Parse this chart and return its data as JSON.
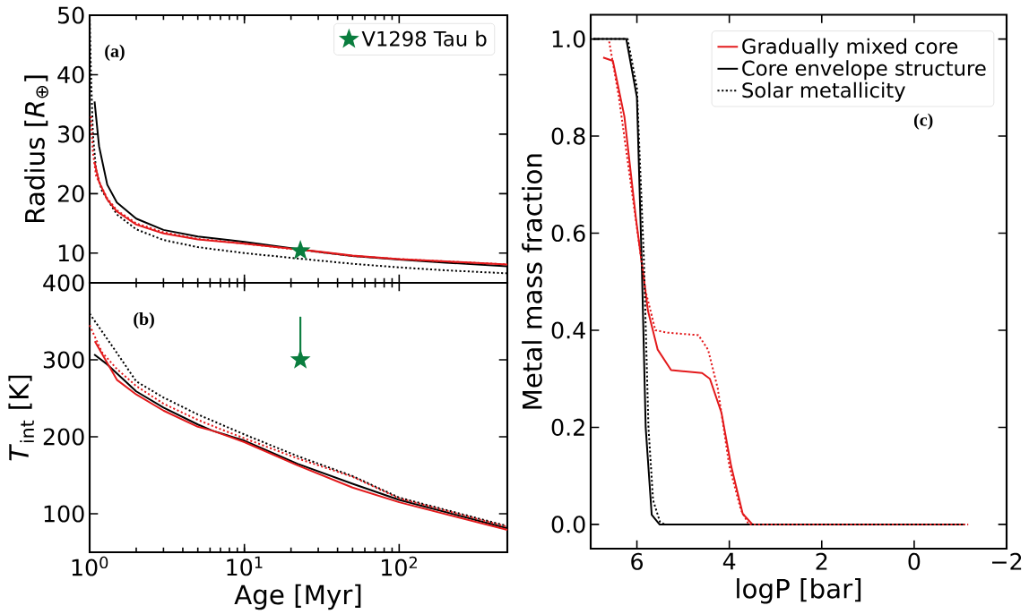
{
  "chart_data": [
    {
      "type": "line",
      "ylabel": "Radius [*R*$_{⊕}$]",
      "log": "x",
      "xlim": [
        1,
        500
      ],
      "ylim": [
        5,
        50
      ],
      "xticks": [
        {
          "value": 1,
          "label": null
        },
        {
          "value": 10,
          "label": null
        },
        {
          "value": 100,
          "label": null
        }
      ],
      "yticks": [
        10,
        20,
        30,
        40,
        50
      ],
      "tick_labels": "y",
      "legend": "top right",
      "annotations": [
        "(a)"
      ],
      "series": [
        {
          "color": "#000000",
          "line_style": "dotted",
          "x": [
            1.0,
            1.02,
            1.05,
            1.1,
            1.2,
            1.5,
            2,
            3,
            5,
            10,
            22,
            50,
            100,
            200,
            500
          ],
          "values": [
            50,
            40,
            30,
            24,
            20.5,
            16.5,
            14,
            12.2,
            11,
            10,
            9.1,
            8.2,
            7.6,
            7.1,
            6.6
          ]
        },
        {
          "color": "#000000",
          "line_style": "solid",
          "x": [
            1.076,
            1.15,
            1.3,
            1.5,
            2,
            3,
            5,
            10,
            32,
            50,
            100,
            200,
            500
          ],
          "values": [
            35.5,
            28,
            21.5,
            18.5,
            15.8,
            13.9,
            12.8,
            11.9,
            10.1,
            9.5,
            8.9,
            8.4,
            7.8
          ]
        },
        {
          "color": "#e31a1c",
          "line_style": "dotted",
          "x": [
            1.02,
            1.05,
            1.1,
            1.3,
            1.5,
            2,
            3,
            5,
            10,
            32,
            50,
            100,
            200,
            500
          ],
          "values": [
            33,
            27,
            23,
            19.2,
            17.2,
            15,
            13.5,
            12.4,
            11.6,
            10.1,
            9.5,
            9.0,
            8.6,
            8.1
          ]
        },
        {
          "color": "#e31a1c",
          "line_style": "solid",
          "x": [
            1.076,
            1.15,
            1.3,
            1.5,
            2,
            3,
            5,
            10,
            32,
            50,
            100,
            200,
            500
          ],
          "values": [
            25.3,
            22,
            19,
            17,
            14.8,
            13.3,
            12.3,
            11.6,
            10.2,
            9.6,
            9.0,
            8.6,
            8.1
          ]
        },
        {
          "type": "scatter",
          "name": "V1298 Tau b",
          "marker": "star",
          "color": "#0a7d3e",
          "x": [
            23
          ],
          "values": [
            10.4
          ]
        }
      ]
    },
    {
      "type": "line",
      "xlabel": "Age [Myr]",
      "ylabel": "*T*$_{int}$ [K]",
      "log": "x",
      "xlim": [
        1,
        500
      ],
      "ylim": [
        50,
        400
      ],
      "xticks": [
        {
          "value": 1,
          "label": "10$^{0}$"
        },
        {
          "value": 10,
          "label": "10$^{1}$"
        },
        {
          "value": 100,
          "label": "10$^{2}$"
        }
      ],
      "yticks": [
        100,
        200,
        300,
        400
      ],
      "annotations": [
        "(b)"
      ],
      "series": [
        {
          "color": "#000000",
          "line_style": "dotted",
          "x": [
            1.0,
            1.2,
            1.5,
            2,
            3,
            5,
            10,
            22,
            50,
            100,
            500
          ],
          "values": [
            360,
            337,
            309,
            272,
            251,
            229,
            203,
            175,
            149,
            121,
            84
          ]
        },
        {
          "color": "#000000",
          "line_style": "solid",
          "x": [
            1.07,
            1.3,
            2,
            3,
            5,
            6.2,
            10,
            22,
            50,
            100,
            500
          ],
          "values": [
            307,
            294,
            259,
            238,
            216,
            208,
            195,
            165,
            139,
            118,
            81
          ]
        },
        {
          "color": "#e31a1c",
          "line_style": "dotted",
          "x": [
            1.0,
            1.2,
            1.5,
            2,
            3,
            5,
            7,
            10,
            22,
            50,
            100,
            500
          ],
          "values": [
            345,
            310,
            288,
            266,
            243,
            222,
            210,
            198,
            172,
            148,
            120,
            83
          ]
        },
        {
          "color": "#e31a1c",
          "line_style": "solid",
          "x": [
            1.08,
            1.5,
            2,
            3,
            5,
            6.2,
            10,
            22,
            50,
            100,
            500
          ],
          "values": [
            324,
            274,
            255,
            234,
            213,
            208,
            193,
            163,
            134,
            115,
            79
          ]
        },
        {
          "type": "scatter",
          "marker": "star",
          "color": "#0a7d3e",
          "x": [
            23
          ],
          "values": [
            300
          ],
          "errors": [
            [
              300,
              356
            ]
          ]
        }
      ]
    },
    {
      "type": "line",
      "xlabel": "logP [bar]",
      "ylabel": "Metal mass fraction",
      "xlim": [
        7,
        -2
      ],
      "ylim": [
        -0.05,
        1.05
      ],
      "xticks": [
        6,
        4,
        2,
        0,
        {
          "value": -2,
          "label": "−2"
        }
      ],
      "yticks": [
        {
          "value": 0,
          "label": "0.0"
        },
        0.2,
        0.4,
        0.6,
        0.8,
        {
          "value": 1,
          "label": "1.0"
        }
      ],
      "legend": "top right",
      "annotations": [
        "(c)"
      ],
      "series": [
        {
          "name": "Gradually mixed core",
          "color": "#e31a1c",
          "line_style": "solid",
          "x": [
            6.73,
            6.52,
            6.27,
            6.02,
            5.76,
            5.55,
            5.26,
            4.59,
            4.42,
            4.17,
            3.96,
            3.71,
            3.5,
            -1.08
          ],
          "values": [
            0.962,
            0.955,
            0.84,
            0.63,
            0.44,
            0.36,
            0.318,
            0.312,
            0.3,
            0.23,
            0.12,
            0.022,
            0.0,
            0.0
          ]
        },
        {
          "name": "Core envelope structure",
          "color": "#000000",
          "line_style": "solid",
          "x": [
            6.94,
            6.23,
            6.0,
            5.89,
            5.81,
            5.68,
            5.51,
            -1.08
          ],
          "values": [
            1.0,
            1.0,
            0.88,
            0.52,
            0.2,
            0.02,
            0.0,
            0.0
          ]
        },
        {
          "name": "Solar metallicity",
          "color": "#000000",
          "line_style": "dotted",
          "x": [
            6.94,
            6.2,
            6.0,
            5.85,
            5.75,
            5.65,
            5.5,
            5.4,
            -1.1
          ],
          "values": [
            1.0,
            1.0,
            0.9,
            0.55,
            0.2,
            0.05,
            0.005,
            0.0,
            0.0
          ]
        },
        {
          "color": "#e31a1c",
          "line_style": "dotted",
          "x": [
            6.6,
            6.39,
            6.1,
            5.81,
            5.6,
            5.34,
            4.67,
            4.46,
            4.25,
            4.0,
            3.75,
            3.58,
            -1.17
          ],
          "values": [
            0.995,
            0.88,
            0.68,
            0.48,
            0.4,
            0.395,
            0.39,
            0.36,
            0.28,
            0.12,
            0.03,
            0.0,
            0.0
          ]
        }
      ]
    }
  ]
}
